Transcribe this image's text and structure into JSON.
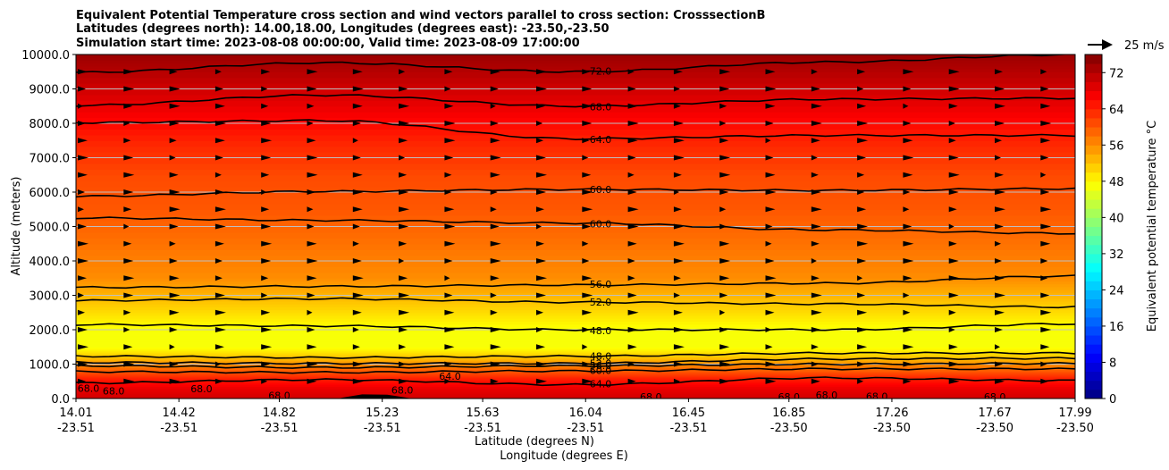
{
  "chart_data": {
    "type": "cross-section",
    "title_lines": [
      "Equivalent Potential Temperature cross section and wind vectors parallel to cross section: CrosssectionB",
      "Latitudes (degrees north): 14.00,18.00, Longitudes (degrees east): -23.50,-23.50",
      "Simulation start time: 2023-08-08 00:00:00, Valid time: 2023-08-09 17:00:00"
    ],
    "ylabel": "Altitude (meters)",
    "xlabel_lat": "Latitude (degrees N)",
    "xlabel_lon": "Longitude (degrees E)",
    "ylim": [
      0,
      10000
    ],
    "yticks": [
      "0.0",
      "1000.0",
      "2000.0",
      "3000.0",
      "4000.0",
      "5000.0",
      "6000.0",
      "7000.0",
      "8000.0",
      "9000.0",
      "10000.0"
    ],
    "xticks_lat": [
      "14.01",
      "14.42",
      "14.82",
      "15.23",
      "15.63",
      "16.04",
      "16.45",
      "16.85",
      "17.26",
      "17.67",
      "17.99"
    ],
    "xticks_lon": [
      "-23.51",
      "-23.51",
      "-23.51",
      "-23.51",
      "-23.51",
      "-23.51",
      "-23.51",
      "-23.50",
      "-23.50",
      "-23.50",
      "-23.50"
    ],
    "xlim": [
      14.01,
      17.99
    ],
    "colorbar": {
      "label": "Equivalent potential temperature °C",
      "ticks": [
        "0",
        "8",
        "16",
        "24",
        "32",
        "40",
        "48",
        "56",
        "64",
        "72"
      ],
      "range": [
        0,
        76
      ]
    },
    "wind_key": "25 m/s",
    "profile": [
      {
        "alt": 0,
        "thetae": 70
      },
      {
        "alt": 300,
        "thetae": 68
      },
      {
        "alt": 600,
        "thetae": 64
      },
      {
        "alt": 900,
        "thetae": 58
      },
      {
        "alt": 1200,
        "thetae": 52
      },
      {
        "alt": 1500,
        "thetae": 47
      },
      {
        "alt": 2000,
        "thetae": 47
      },
      {
        "alt": 2500,
        "thetae": 50
      },
      {
        "alt": 3000,
        "thetae": 53
      },
      {
        "alt": 3500,
        "thetae": 56
      },
      {
        "alt": 4500,
        "thetae": 58
      },
      {
        "alt": 5500,
        "thetae": 60
      },
      {
        "alt": 6500,
        "thetae": 61
      },
      {
        "alt": 7500,
        "thetae": 64
      },
      {
        "alt": 8500,
        "thetae": 68
      },
      {
        "alt": 9500,
        "thetae": 72
      },
      {
        "alt": 10000,
        "thetae": 74
      }
    ],
    "contours": [
      {
        "label": "72.0",
        "lat": [
          14.01,
          15.0,
          16.0,
          17.0,
          17.99
        ],
        "alt": [
          9480,
          9760,
          9500,
          9780,
          10000
        ]
      },
      {
        "label": "68.0",
        "lat": [
          14.01,
          15.0,
          16.0,
          17.0,
          17.99
        ],
        "alt": [
          8520,
          8820,
          8500,
          8700,
          8730
        ]
      },
      {
        "label": "64.0",
        "lat": [
          14.01,
          15.0,
          16.0,
          17.0,
          17.99
        ],
        "alt": [
          8020,
          8080,
          7550,
          7650,
          7650
        ]
      },
      {
        "label": "60.0",
        "lat": [
          14.01,
          15.0,
          16.0,
          17.0,
          17.99
        ],
        "alt": [
          5880,
          6020,
          6080,
          6050,
          6100
        ]
      },
      {
        "label": "60.0",
        "lat": [
          14.01,
          15.0,
          16.0,
          17.0,
          17.99
        ],
        "alt": [
          5250,
          5180,
          5100,
          4900,
          4800
        ]
      },
      {
        "label": "56.0",
        "lat": [
          14.01,
          15.0,
          16.0,
          17.0,
          17.99
        ],
        "alt": [
          3230,
          3260,
          3300,
          3350,
          3560
        ]
      },
      {
        "label": "52.0",
        "lat": [
          14.01,
          15.0,
          16.0,
          17.0,
          17.99
        ],
        "alt": [
          2850,
          2900,
          2800,
          2750,
          2660
        ]
      },
      {
        "label": "48.0",
        "lat": [
          14.01,
          15.0,
          16.0,
          17.0,
          17.99
        ],
        "alt": [
          2150,
          2110,
          2000,
          2000,
          2170
        ]
      },
      {
        "label": "48.0",
        "lat": [
          14.01,
          15.0,
          16.0,
          17.0,
          17.99
        ],
        "alt": [
          1230,
          1190,
          1230,
          1320,
          1320
        ]
      },
      {
        "label": "52.0",
        "lat": [
          14.01,
          15.0,
          16.0,
          17.0,
          17.99
        ],
        "alt": [
          1050,
          1020,
          1020,
          1150,
          1170
        ]
      },
      {
        "label": "56.0",
        "lat": [
          14.01,
          15.0,
          16.0,
          17.0,
          17.99
        ],
        "alt": [
          950,
          900,
          950,
          1000,
          1020
        ]
      },
      {
        "label": "60.0",
        "lat": [
          14.01,
          15.0,
          16.0,
          17.0,
          17.99
        ],
        "alt": [
          780,
          760,
          800,
          860,
          860
        ]
      },
      {
        "label": "64.0",
        "lat": [
          14.01,
          15.0,
          16.0,
          17.0,
          17.99
        ],
        "alt": [
          450,
          550,
          400,
          600,
          520
        ]
      }
    ],
    "extra_labels": [
      {
        "text": "68.0",
        "lat": 14.06,
        "alt": 300
      },
      {
        "text": "68.0",
        "lat": 14.16,
        "alt": 220
      },
      {
        "text": "68.0",
        "lat": 14.51,
        "alt": 280
      },
      {
        "text": "68.0",
        "lat": 14.82,
        "alt": 90
      },
      {
        "text": "68.0",
        "lat": 15.31,
        "alt": 250
      },
      {
        "text": "64.0",
        "lat": 15.5,
        "alt": 650
      },
      {
        "text": "68.0",
        "lat": 16.3,
        "alt": 50
      },
      {
        "text": "68.0",
        "lat": 16.85,
        "alt": 50
      },
      {
        "text": "68.0",
        "lat": 17.0,
        "alt": 110
      },
      {
        "text": "68.0",
        "lat": 17.2,
        "alt": 70
      },
      {
        "text": "68.0",
        "lat": 17.67,
        "alt": 50
      }
    ]
  }
}
